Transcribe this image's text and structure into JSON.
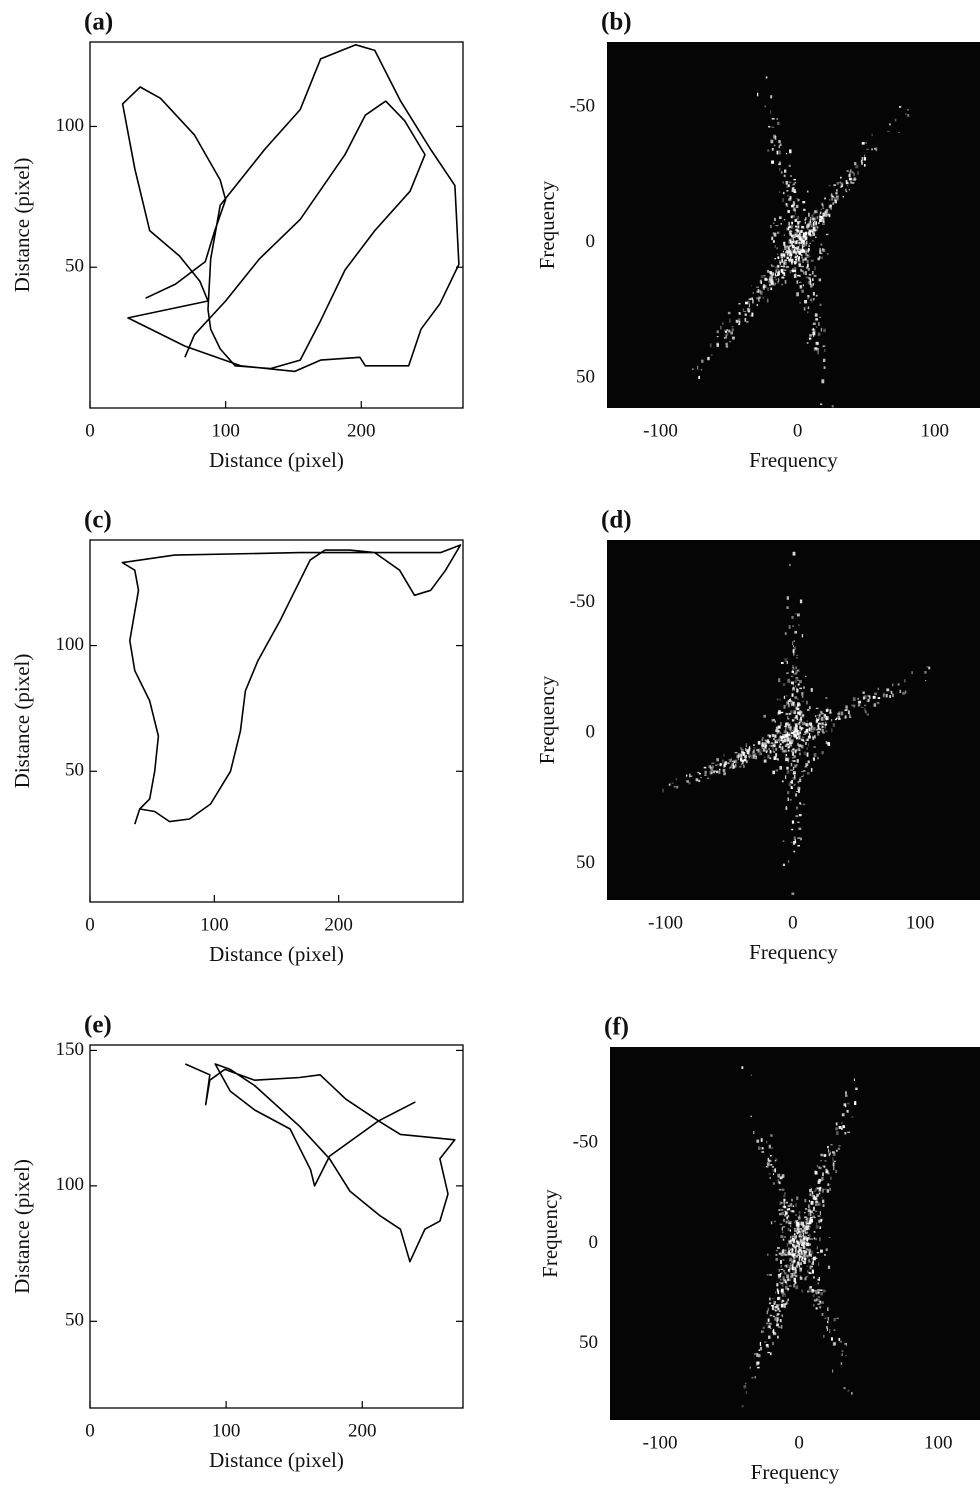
{
  "chart_data": [
    {
      "type": "line",
      "title": "(a)",
      "xlabel": "Distance (pixel)",
      "ylabel": "Distance (pixel)",
      "color": "#000000",
      "xlim": [
        0,
        275
      ],
      "ylim": [
        0,
        130
      ],
      "xticks": [
        0,
        100,
        200
      ],
      "yticks": [
        50,
        100
      ],
      "x": [
        41,
        63,
        85,
        92,
        100,
        96,
        77,
        52,
        37,
        24,
        33,
        44,
        66,
        81,
        87,
        28,
        70,
        111,
        151,
        170,
        199,
        203,
        235,
        244,
        258,
        272,
        269,
        251,
        229,
        210,
        196,
        170,
        155,
        129,
        96,
        89,
        87,
        89,
        96,
        107,
        133,
        155,
        170,
        188,
        210,
        236,
        247,
        232,
        218,
        203,
        188,
        155,
        125,
        100,
        77,
        70
      ],
      "values": [
        39,
        44,
        52,
        63,
        74,
        81,
        97,
        110,
        114,
        108,
        85,
        63,
        54,
        45,
        38,
        32,
        22,
        15,
        13,
        17,
        18,
        15,
        15,
        28,
        37,
        51,
        79,
        92,
        109,
        127,
        129,
        124,
        106,
        92,
        72,
        53,
        35,
        28,
        21,
        15,
        14,
        17,
        31,
        49,
        63,
        77,
        90,
        102,
        109,
        104,
        90,
        67,
        53,
        38,
        26,
        18
      ]
    },
    {
      "type": "image",
      "title": "(b)",
      "xlabel": "Frequency",
      "ylabel": "Frequency",
      "xlim": [
        -139,
        133
      ],
      "ylim": [
        61,
        -74
      ],
      "xticks": [
        -100,
        0,
        100
      ],
      "yticks": [
        -50,
        0,
        50
      ]
    },
    {
      "type": "line",
      "title": "(c)",
      "xlabel": "Distance (pixel)",
      "ylabel": "Distance (pixel)",
      "color": "#000000",
      "xlim": [
        0,
        300
      ],
      "ylim": [
        -2,
        142
      ],
      "xticks": [
        0,
        100,
        200
      ],
      "yticks": [
        50,
        100
      ],
      "x": [
        36,
        40,
        52,
        64,
        80,
        97,
        113,
        121,
        125,
        135,
        153,
        165,
        177,
        189,
        209,
        229,
        249,
        261,
        274,
        286,
        298,
        282,
        169,
        68,
        26,
        36,
        39,
        32,
        36,
        48,
        55,
        52,
        48,
        40
      ],
      "values": [
        29,
        35,
        34,
        30,
        31,
        37,
        50,
        66,
        82,
        94,
        110,
        122,
        134,
        138,
        138,
        137,
        130,
        120,
        122,
        130,
        140,
        137,
        137,
        136,
        133,
        130,
        122,
        102,
        90,
        78,
        64,
        50,
        39,
        35
      ]
    },
    {
      "type": "image",
      "title": "(d)",
      "xlabel": "Frequency",
      "ylabel": "Frequency",
      "xlim": [
        -146,
        147
      ],
      "ylim": [
        64,
        -74
      ],
      "xticks": [
        -100,
        0,
        100
      ],
      "yticks": [
        -50,
        0,
        50
      ]
    },
    {
      "type": "line",
      "title": "(e)",
      "xlabel": "Distance (pixel)",
      "ylabel": "Distance (pixel)",
      "color": "#000000",
      "xlim": [
        0,
        274
      ],
      "ylim": [
        18,
        152
      ],
      "xticks": [
        0,
        100,
        200
      ],
      "yticks": [
        50,
        100,
        150
      ],
      "x": [
        70,
        88,
        85,
        88,
        99,
        121,
        154,
        169,
        188,
        212,
        176,
        165,
        162,
        147,
        121,
        103,
        92,
        103,
        121,
        154,
        176,
        191,
        213,
        228,
        235,
        246,
        257,
        263,
        257,
        268,
        228,
        212,
        239
      ],
      "values": [
        145,
        141,
        130,
        139,
        143,
        139,
        140,
        141,
        132,
        124,
        111,
        100,
        106,
        121,
        128,
        135,
        145,
        143,
        137,
        122,
        110,
        98,
        89,
        84,
        72,
        84,
        87,
        97,
        110,
        117,
        119,
        124,
        131
      ]
    },
    {
      "type": "image",
      "title": "(f)",
      "xlabel": "Frequency",
      "ylabel": "Frequency",
      "xlim": [
        -136,
        130
      ],
      "ylim": [
        88,
        -98
      ],
      "xticks": [
        -100,
        0,
        100
      ],
      "yticks": [
        -50,
        0,
        50
      ]
    }
  ]
}
